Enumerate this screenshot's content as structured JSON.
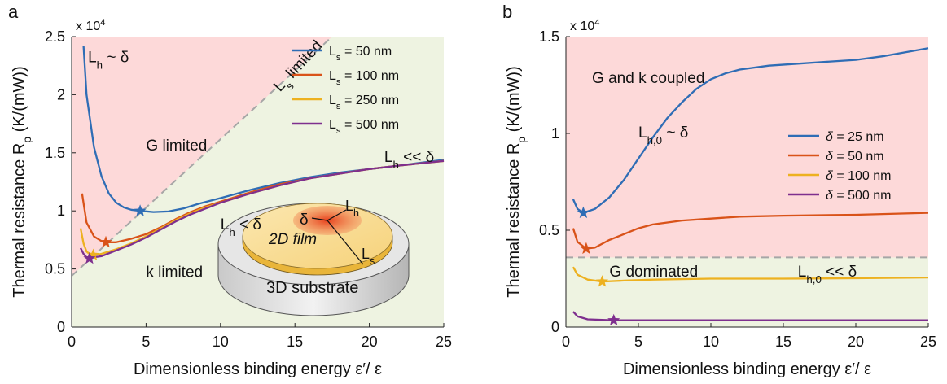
{
  "chart_data": [
    {
      "type": "line",
      "panel_label": "a",
      "x_label": "Dimensionless binding energy ε′/ ε",
      "y_label": [
        "Thermal resistance R",
        {
          "sub": "p"
        },
        " (K/(mW))"
      ],
      "y_multiplier": [
        "x 10",
        {
          "sup": "4"
        }
      ],
      "xlim": [
        0,
        25
      ],
      "xticks": [
        0,
        5,
        10,
        15,
        20,
        25
      ],
      "ylim": [
        0,
        2.5
      ],
      "yticks": [
        0,
        0.5,
        1,
        1.5,
        2,
        2.5
      ],
      "region_colors": {
        "upper": "#fdd9d9",
        "lower": "#eef3e1"
      },
      "boundary": {
        "x": [
          0,
          17.5
        ],
        "y": [
          0.44,
          2.5
        ],
        "color": "#a6a6a6"
      },
      "legend": "upper right",
      "series": [
        {
          "name": [
            "L",
            {
              "sub": "s"
            },
            " = 50 nm"
          ],
          "color": "#2f6db5",
          "x": [
            0.8,
            1,
            1.5,
            2,
            2.5,
            3,
            3.5,
            4,
            4.6,
            5.5,
            6.5,
            7.5,
            8.5,
            10,
            12,
            14,
            16,
            18,
            20,
            22,
            25
          ],
          "values": [
            2.42,
            2.0,
            1.55,
            1.3,
            1.15,
            1.07,
            1.03,
            1.01,
            1.0,
            0.99,
            0.995,
            1.02,
            1.06,
            1.11,
            1.18,
            1.24,
            1.29,
            1.33,
            1.36,
            1.39,
            1.44
          ],
          "min_x": 4.6,
          "min_y": 1.0
        },
        {
          "name": [
            "L",
            {
              "sub": "s"
            },
            " = 100 nm"
          ],
          "color": "#d95319",
          "x": [
            0.7,
            1,
            1.5,
            2,
            2.3,
            3,
            4,
            5,
            6,
            7,
            8,
            9,
            10,
            12,
            14,
            16,
            18,
            20,
            22,
            25
          ],
          "values": [
            1.15,
            0.9,
            0.78,
            0.74,
            0.73,
            0.73,
            0.76,
            0.8,
            0.86,
            0.93,
            0.99,
            1.04,
            1.08,
            1.16,
            1.23,
            1.28,
            1.32,
            1.36,
            1.39,
            1.43
          ],
          "min_x": 2.3,
          "min_y": 0.73
        },
        {
          "name": [
            "L",
            {
              "sub": "s"
            },
            " = 250 nm"
          ],
          "color": "#edb120",
          "x": [
            0.6,
            0.8,
            1,
            1.3,
            1.6,
            2,
            3,
            4,
            5,
            6,
            7,
            8,
            9,
            10,
            12,
            14,
            16,
            18,
            20,
            22,
            25
          ],
          "values": [
            0.85,
            0.72,
            0.65,
            0.62,
            0.62,
            0.63,
            0.67,
            0.72,
            0.78,
            0.85,
            0.92,
            0.98,
            1.03,
            1.07,
            1.15,
            1.22,
            1.28,
            1.32,
            1.36,
            1.39,
            1.43
          ],
          "min_x": 1.45,
          "min_y": 0.62
        },
        {
          "name": [
            "L",
            {
              "sub": "s"
            },
            " = 500 nm"
          ],
          "color": "#7e2f8e",
          "x": [
            0.6,
            0.8,
            1,
            1.2,
            1.5,
            2,
            3,
            4,
            5,
            6,
            7,
            8,
            9,
            10,
            12,
            14,
            16,
            18,
            20,
            22,
            25
          ],
          "values": [
            0.68,
            0.63,
            0.6,
            0.59,
            0.6,
            0.61,
            0.66,
            0.71,
            0.77,
            0.84,
            0.91,
            0.97,
            1.02,
            1.07,
            1.15,
            1.22,
            1.28,
            1.32,
            1.36,
            1.39,
            1.43
          ],
          "min_x": 1.2,
          "min_y": 0.59
        }
      ],
      "annotations": [
        {
          "text": [
            "L",
            {
              "sub": "h"
            },
            " ~ δ"
          ],
          "color": "#111111"
        },
        {
          "text": [
            "G limited"
          ],
          "color": "#e8262b"
        },
        {
          "text": [
            "L",
            {
              "sub": "s"
            },
            " limited"
          ],
          "color": "#a6a6a6"
        },
        {
          "text": [
            "L",
            {
              "sub": "h"
            },
            " << δ"
          ],
          "color": "#111111"
        },
        {
          "text": [
            "L",
            {
              "sub": "h"
            },
            " < δ"
          ],
          "color": "#111111"
        },
        {
          "text": [
            "k limited"
          ],
          "color": "#1fae55"
        }
      ],
      "inset": {
        "labels": [
          "δ",
          [
            "L",
            {
              "sub": "h"
            }
          ],
          [
            "L",
            {
              "sub": "s"
            }
          ],
          "2D film",
          "3D substrate"
        ]
      }
    },
    {
      "type": "line",
      "panel_label": "b",
      "x_label": "Dimensionless binding energy ε′/ ε",
      "y_label": [
        "Thermal resistance R",
        {
          "sub": "p"
        },
        " (K/(mW))"
      ],
      "y_multiplier": [
        "x 10",
        {
          "sup": "4"
        }
      ],
      "xlim": [
        0,
        25
      ],
      "xticks": [
        0,
        5,
        10,
        15,
        20,
        25
      ],
      "ylim": [
        0,
        1.5
      ],
      "yticks": [
        0,
        0.5,
        1,
        1.5
      ],
      "region_colors": {
        "upper": "#fdd9d9",
        "lower": "#eef3e1"
      },
      "boundary": {
        "x": [
          0,
          25
        ],
        "y": [
          0.36,
          0.36
        ],
        "color": "#a6a6a6"
      },
      "legend": "center right",
      "series": [
        {
          "name": [
            "δ",
            " = 25 nm"
          ],
          "color": "#2f6db5",
          "x": [
            0.5,
            0.8,
            1.2,
            2,
            3,
            4,
            5,
            6,
            7,
            8,
            9,
            10,
            11,
            12,
            14,
            16,
            18,
            20,
            22,
            25
          ],
          "values": [
            0.66,
            0.61,
            0.59,
            0.61,
            0.67,
            0.76,
            0.87,
            0.98,
            1.08,
            1.16,
            1.23,
            1.28,
            1.31,
            1.33,
            1.35,
            1.36,
            1.37,
            1.38,
            1.4,
            1.44
          ],
          "min_x": 1.2,
          "min_y": 0.59
        },
        {
          "name": [
            "δ",
            " = 50 nm"
          ],
          "color": "#d95319",
          "x": [
            0.5,
            0.8,
            1.4,
            2,
            3,
            4,
            5,
            6,
            8,
            10,
            12,
            15,
            20,
            25
          ],
          "values": [
            0.51,
            0.44,
            0.405,
            0.41,
            0.45,
            0.48,
            0.51,
            0.53,
            0.55,
            0.56,
            0.57,
            0.575,
            0.58,
            0.59
          ],
          "min_x": 1.4,
          "min_y": 0.405
        },
        {
          "name": [
            "δ",
            " = 100 nm"
          ],
          "color": "#edb120",
          "x": [
            0.5,
            0.8,
            1.5,
            2.5,
            4,
            6,
            10,
            15,
            20,
            25
          ],
          "values": [
            0.31,
            0.27,
            0.245,
            0.235,
            0.24,
            0.245,
            0.25,
            0.25,
            0.252,
            0.256
          ],
          "min_x": 2.5,
          "min_y": 0.235
        },
        {
          "name": [
            "δ",
            " = 500 nm"
          ],
          "color": "#7e2f8e",
          "x": [
            0.5,
            0.8,
            1.5,
            3.3,
            5,
            10,
            25
          ],
          "values": [
            0.08,
            0.055,
            0.04,
            0.035,
            0.035,
            0.035,
            0.035
          ],
          "min_x": 3.3,
          "min_y": 0.035
        }
      ],
      "annotations": [
        {
          "text": [
            "G and k coupled"
          ],
          "color": "#e8262b"
        },
        {
          "text": [
            "L",
            {
              "sub": "h,0"
            },
            " ~ δ"
          ],
          "color": "#111111"
        },
        {
          "text": [
            "G dominated"
          ],
          "color": "#1fae55"
        },
        {
          "text": [
            "L",
            {
              "sub": "h,0"
            },
            " << δ"
          ],
          "color": "#111111"
        }
      ]
    }
  ]
}
